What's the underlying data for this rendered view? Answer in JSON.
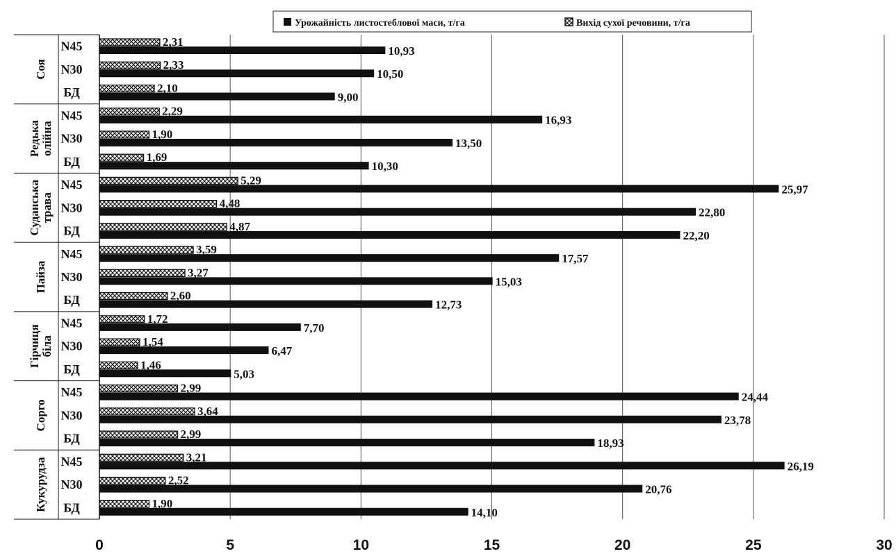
{
  "chart_data": {
    "type": "bar",
    "orientation": "horizontal",
    "legend_position": "top",
    "grid": true,
    "xlim": [
      0,
      30
    ],
    "x_ticks": [
      "0",
      "5",
      "10",
      "15",
      "20",
      "25",
      "30"
    ],
    "series": [
      {
        "name": "Урожайність листостеблової маси, т/га",
        "color": "#111111"
      },
      {
        "name": "Вихід сухої речовини, т/га",
        "color": "#ffffff",
        "pattern": "hatched"
      }
    ],
    "groups": [
      {
        "label": "Соя",
        "rows": [
          {
            "sub": "N45",
            "yield": 10.93,
            "yield_label": "10,93",
            "dry": 2.31,
            "dry_label": "2,31"
          },
          {
            "sub": "N30",
            "yield": 10.5,
            "yield_label": "10,50",
            "dry": 2.33,
            "dry_label": "2,33"
          },
          {
            "sub": "БД",
            "yield": 9.0,
            "yield_label": "9,00",
            "dry": 2.1,
            "dry_label": "2,10"
          }
        ]
      },
      {
        "label": "Редька олійна",
        "rows": [
          {
            "sub": "N45",
            "yield": 16.93,
            "yield_label": "16,93",
            "dry": 2.29,
            "dry_label": "2,29"
          },
          {
            "sub": "N30",
            "yield": 13.5,
            "yield_label": "13,50",
            "dry": 1.9,
            "dry_label": "1,90"
          },
          {
            "sub": "БД",
            "yield": 10.3,
            "yield_label": "10,30",
            "dry": 1.69,
            "dry_label": "1,69"
          }
        ]
      },
      {
        "label": "Суданська трава",
        "rows": [
          {
            "sub": "N45",
            "yield": 25.97,
            "yield_label": "25,97",
            "dry": 5.29,
            "dry_label": "5,29"
          },
          {
            "sub": "N30",
            "yield": 22.8,
            "yield_label": "22,80",
            "dry": 4.48,
            "dry_label": "4,48"
          },
          {
            "sub": "БД",
            "yield": 22.2,
            "yield_label": "22,20",
            "dry": 4.87,
            "dry_label": "4,87"
          }
        ]
      },
      {
        "label": "Пайза",
        "rows": [
          {
            "sub": "N45",
            "yield": 17.57,
            "yield_label": "17,57",
            "dry": 3.59,
            "dry_label": "3,59"
          },
          {
            "sub": "N30",
            "yield": 15.03,
            "yield_label": "15,03",
            "dry": 3.27,
            "dry_label": "3,27"
          },
          {
            "sub": "БД",
            "yield": 12.73,
            "yield_label": "12,73",
            "dry": 2.6,
            "dry_label": "2,60"
          }
        ]
      },
      {
        "label": "Гірчиця біла",
        "rows": [
          {
            "sub": "N45",
            "yield": 7.7,
            "yield_label": "7,70",
            "dry": 1.72,
            "dry_label": "1,72"
          },
          {
            "sub": "N30",
            "yield": 6.47,
            "yield_label": "6,47",
            "dry": 1.54,
            "dry_label": "1,54"
          },
          {
            "sub": "БД",
            "yield": 5.03,
            "yield_label": "5,03",
            "dry": 1.46,
            "dry_label": "1,46"
          }
        ]
      },
      {
        "label": "Сорго",
        "rows": [
          {
            "sub": "N45",
            "yield": 24.44,
            "yield_label": "24,44",
            "dry": 2.99,
            "dry_label": "2,99"
          },
          {
            "sub": "N30",
            "yield": 23.78,
            "yield_label": "23,78",
            "dry": 3.64,
            "dry_label": "3,64"
          },
          {
            "sub": "БД",
            "yield": 18.93,
            "yield_label": "18,93",
            "dry": 2.99,
            "dry_label": "2,99"
          }
        ]
      },
      {
        "label": "Кукурудза",
        "rows": [
          {
            "sub": "N45",
            "yield": 26.19,
            "yield_label": "26,19",
            "dry": 3.21,
            "dry_label": "3,21"
          },
          {
            "sub": "N30",
            "yield": 20.76,
            "yield_label": "20,76",
            "dry": 2.52,
            "dry_label": "2,52"
          },
          {
            "sub": "БД",
            "yield": 14.1,
            "yield_label": "14,10",
            "dry": 1.9,
            "dry_label": "1,90"
          }
        ]
      }
    ]
  }
}
